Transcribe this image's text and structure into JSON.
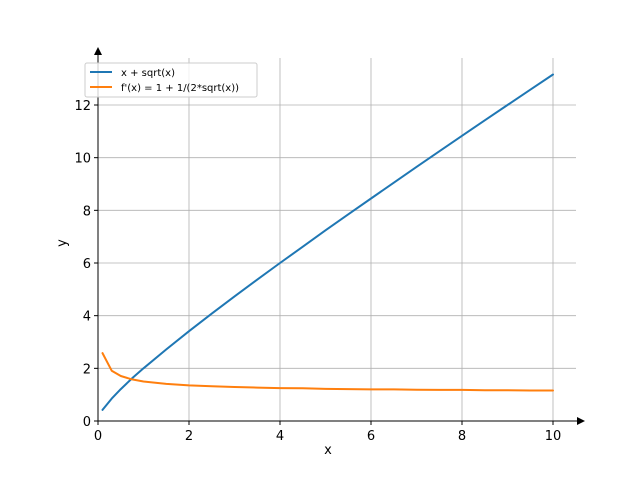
{
  "chart_data": {
    "type": "line",
    "xlabel": "x",
    "ylabel": "y",
    "xlim": [
      0,
      10.5
    ],
    "ylim": [
      0,
      13.8
    ],
    "xticks": [
      0,
      2,
      4,
      6,
      8,
      10
    ],
    "xtick_labels": [
      "0",
      "2",
      "4",
      "6",
      "8",
      "10"
    ],
    "yticks": [
      0,
      2,
      4,
      6,
      8,
      10,
      12
    ],
    "ytick_labels": [
      "0",
      "2",
      "4",
      "6",
      "8",
      "10",
      "12"
    ],
    "grid": true,
    "legend_position": "top-left",
    "series": [
      {
        "name": "x + sqrt(x)",
        "color": "#1f77b4",
        "x": [
          0.1,
          0.3,
          0.5,
          0.75,
          1,
          1.5,
          2,
          2.5,
          3,
          3.5,
          4,
          4.5,
          5,
          5.5,
          6,
          6.5,
          7,
          7.5,
          8,
          8.5,
          9,
          9.5,
          10
        ],
        "y": [
          0.42,
          0.85,
          1.21,
          1.62,
          2.0,
          2.72,
          3.41,
          4.08,
          4.73,
          5.37,
          6.0,
          6.62,
          7.24,
          7.85,
          8.45,
          9.05,
          9.65,
          10.24,
          10.83,
          11.42,
          12.0,
          12.58,
          13.16
        ]
      },
      {
        "name": "f'(x) = 1 + 1/(2*sqrt(x))",
        "color": "#ff7f0e",
        "x": [
          0.1,
          0.3,
          0.5,
          0.75,
          1,
          1.5,
          2,
          2.5,
          3,
          3.5,
          4,
          4.5,
          5,
          5.5,
          6,
          6.5,
          7,
          7.5,
          8,
          8.5,
          9,
          9.5,
          10
        ],
        "y": [
          2.58,
          1.91,
          1.71,
          1.58,
          1.5,
          1.41,
          1.35,
          1.32,
          1.29,
          1.27,
          1.25,
          1.24,
          1.22,
          1.21,
          1.2,
          1.2,
          1.19,
          1.18,
          1.18,
          1.17,
          1.17,
          1.16,
          1.16
        ]
      }
    ]
  }
}
